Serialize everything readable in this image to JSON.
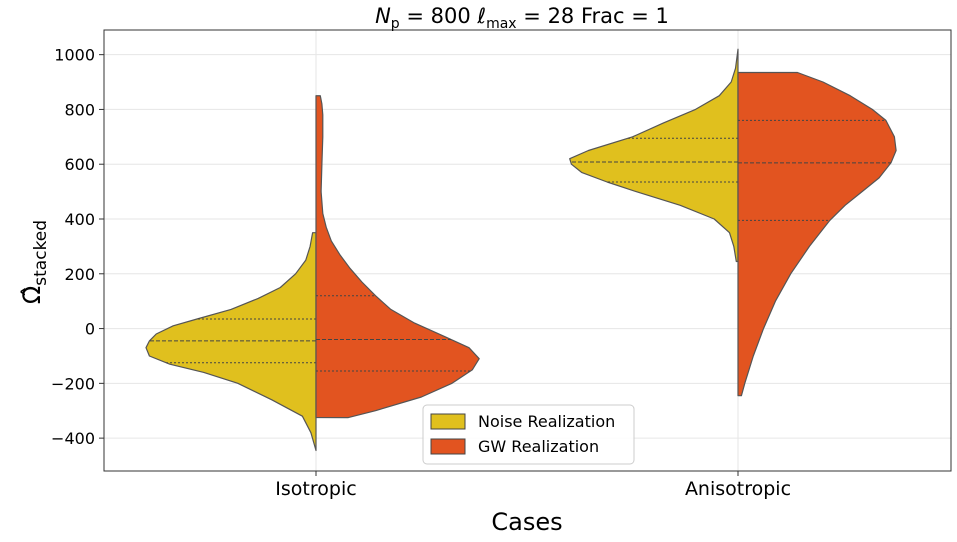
{
  "chart_data": {
    "type": "violin",
    "title": "N_p = 800   ℓ_max = 28   Frac = 1",
    "title_parts": {
      "np_symbol": "N",
      "np_sub": "p",
      "np_value": "800",
      "lmax_symbol": "ℓ",
      "lmax_sub": "max",
      "lmax_value": "28",
      "frac_label": "Frac",
      "frac_value": "1"
    },
    "xlabel": "Cases",
    "ylabel": "Ω̂",
    "ylabel_sub": "stacked",
    "categories": [
      "Isotropic",
      "Anisotropic"
    ],
    "ylim": [
      -520,
      1090
    ],
    "yticks": [
      -400,
      -200,
      0,
      200,
      400,
      600,
      800,
      1000
    ],
    "grid": true,
    "legend_position": "lower-center",
    "series": [
      {
        "name": "Noise Realization",
        "color": "#e0c01e",
        "side": "left",
        "violins": [
          {
            "category": "Isotropic",
            "min": -445,
            "max": 350,
            "quartiles": [
              -125,
              -45,
              35
            ],
            "profile": [
              [
                -445,
                0
              ],
              [
                -380,
                0.03
              ],
              [
                -320,
                0.08
              ],
              [
                -260,
                0.26
              ],
              [
                -200,
                0.46
              ],
              [
                -160,
                0.66
              ],
              [
                -130,
                0.86
              ],
              [
                -100,
                0.98
              ],
              [
                -70,
                1.0
              ],
              [
                -45,
                0.98
              ],
              [
                -20,
                0.94
              ],
              [
                10,
                0.84
              ],
              [
                35,
                0.7
              ],
              [
                70,
                0.5
              ],
              [
                110,
                0.34
              ],
              [
                150,
                0.21
              ],
              [
                200,
                0.12
              ],
              [
                250,
                0.06
              ],
              [
                300,
                0.035
              ],
              [
                350,
                0.02
              ]
            ]
          },
          {
            "category": "Anisotropic",
            "min": 245,
            "max": 1020,
            "quartiles": [
              535,
              608,
              695
            ],
            "profile": [
              [
                245,
                0.01
              ],
              [
                300,
                0.025
              ],
              [
                350,
                0.05
              ],
              [
                400,
                0.14
              ],
              [
                450,
                0.34
              ],
              [
                500,
                0.6
              ],
              [
                535,
                0.77
              ],
              [
                570,
                0.92
              ],
              [
                600,
                0.98
              ],
              [
                620,
                0.99
              ],
              [
                650,
                0.88
              ],
              [
                700,
                0.62
              ],
              [
                750,
                0.44
              ],
              [
                800,
                0.25
              ],
              [
                850,
                0.11
              ],
              [
                900,
                0.04
              ],
              [
                950,
                0.015
              ],
              [
                1020,
                0
              ]
            ]
          }
        ]
      },
      {
        "name": "GW Realization",
        "color": "#e25420",
        "side": "right",
        "violins": [
          {
            "category": "Isotropic",
            "min": -325,
            "max": 850,
            "quartiles": [
              -155,
              -40,
              120
            ],
            "profile": [
              [
                -325,
                0.19
              ],
              [
                -300,
                0.35
              ],
              [
                -250,
                0.62
              ],
              [
                -200,
                0.8
              ],
              [
                -150,
                0.92
              ],
              [
                -110,
                0.96
              ],
              [
                -70,
                0.9
              ],
              [
                -30,
                0.76
              ],
              [
                20,
                0.58
              ],
              [
                70,
                0.44
              ],
              [
                120,
                0.35
              ],
              [
                170,
                0.27
              ],
              [
                220,
                0.2
              ],
              [
                270,
                0.14
              ],
              [
                320,
                0.09
              ],
              [
                370,
                0.06
              ],
              [
                420,
                0.04
              ],
              [
                500,
                0.03
              ],
              [
                600,
                0.035
              ],
              [
                700,
                0.04
              ],
              [
                780,
                0.04
              ],
              [
                820,
                0.035
              ],
              [
                850,
                0.025
              ]
            ]
          },
          {
            "category": "Anisotropic",
            "min": -245,
            "max": 935,
            "quartiles": [
              395,
              605,
              760
            ],
            "profile": [
              [
                -245,
                0.02
              ],
              [
                -200,
                0.04
              ],
              [
                -100,
                0.09
              ],
              [
                0,
                0.15
              ],
              [
                100,
                0.22
              ],
              [
                200,
                0.31
              ],
              [
                300,
                0.42
              ],
              [
                395,
                0.54
              ],
              [
                450,
                0.63
              ],
              [
                500,
                0.73
              ],
              [
                550,
                0.83
              ],
              [
                605,
                0.9
              ],
              [
                650,
                0.93
              ],
              [
                700,
                0.92
              ],
              [
                760,
                0.87
              ],
              [
                800,
                0.79
              ],
              [
                850,
                0.66
              ],
              [
                900,
                0.5
              ],
              [
                935,
                0.35
              ]
            ]
          }
        ]
      }
    ]
  }
}
